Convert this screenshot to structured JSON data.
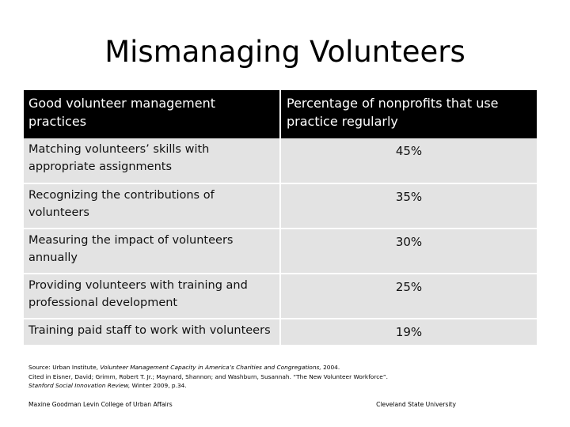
{
  "slide": {
    "title": "Mismanaging Volunteers"
  },
  "table": {
    "headers": [
      "Good volunteer management practices",
      "Percentage of nonprofits that use practice regularly"
    ],
    "rows": [
      {
        "practice": "Matching volunteers’ skills with appropriate assignments",
        "percent": "45%"
      },
      {
        "practice": "Recognizing the contributions of volunteers",
        "percent": "35%"
      },
      {
        "practice": "Measuring the impact of volunteers annually",
        "percent": "30%"
      },
      {
        "practice": "Providing volunteers with training and professional development",
        "percent": "25%"
      },
      {
        "practice": "Training paid staff to work with volunteers",
        "percent": "19%"
      }
    ]
  },
  "source": {
    "line1_prefix": "Source: Urban Institute, ",
    "line1_italic": "Volunteer Management Capacity in America’s Charities and Congregations,",
    "line1_suffix": " 2004.",
    "line2": "Cited in Eisner, David; Grimm, Robert T. Jr.; Maynard, Shannon; and Washburn, Susannah. “The New Volunteer Workforce”.",
    "line3_italic": "Stanford Social Innovation Review,",
    "line3_suffix": " Winter 2009, p.34."
  },
  "footer": {
    "left": "Maxine Goodman Levin College of Urban Affairs",
    "right": "Cleveland State University"
  }
}
